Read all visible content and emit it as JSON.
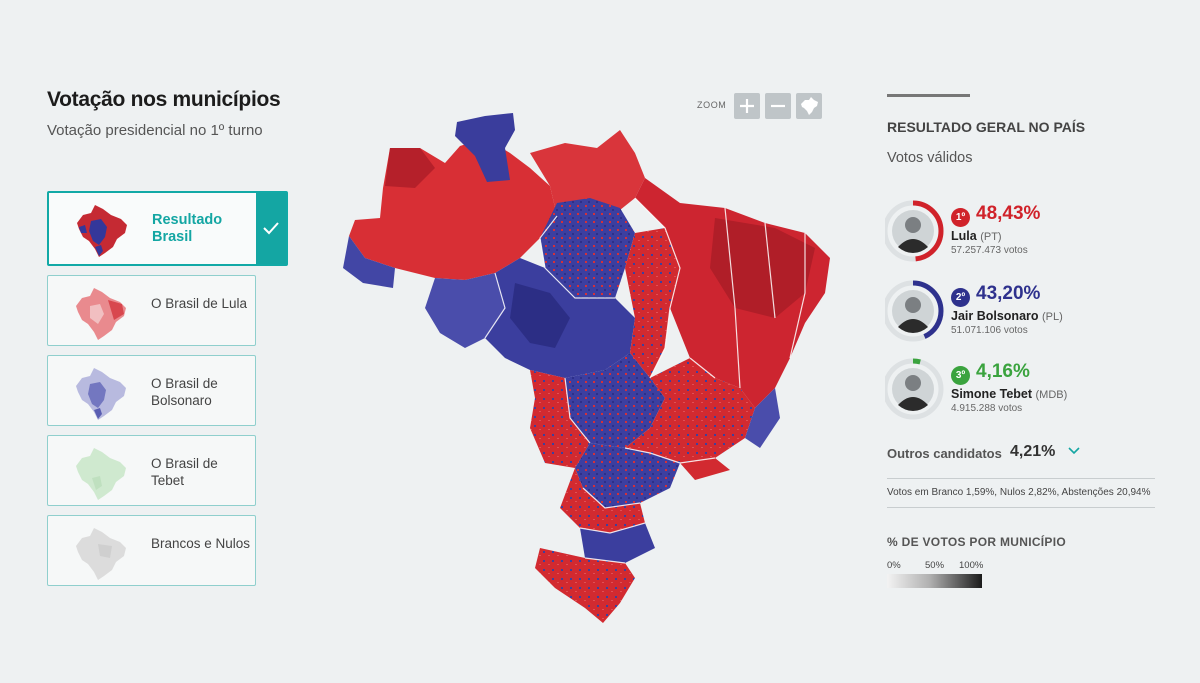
{
  "header": {
    "title": "Votação nos municípios",
    "subtitle": "Votação presidencial no 1º turno"
  },
  "options": [
    {
      "label": "Resultado Brasil",
      "selected": true
    },
    {
      "label": "O Brasil de Lula",
      "selected": false
    },
    {
      "label": "O Brasil de Bolsonaro",
      "selected": false
    },
    {
      "label": "O Brasil de Tebet",
      "selected": false
    },
    {
      "label": "Brancos e Nulos",
      "selected": false
    }
  ],
  "zoom": {
    "label": "ZOOM",
    "in_icon": "plus-icon",
    "out_icon": "minus-icon",
    "reset_icon": "brazil-map-icon"
  },
  "results": {
    "title": "RESULTADO GERAL NO PAÍS",
    "subtitle": "Votos válidos",
    "candidates": [
      {
        "rank": "1º",
        "pct": "48,43%",
        "share": 0.4843,
        "name": "Lula",
        "party": "(PT)",
        "votes": "57.257.473 votos",
        "color": "#d0222a"
      },
      {
        "rank": "2º",
        "pct": "43,20%",
        "share": 0.432,
        "name": "Jair Bolsonaro",
        "party": "(PL)",
        "votes": "51.071.106 votos",
        "color": "#2e318d"
      },
      {
        "rank": "3º",
        "pct": "4,16%",
        "share": 0.0416,
        "name": "Simone Tebet",
        "party": "(MDB)",
        "votes": "4.915.288 votos",
        "color": "#3aa33e"
      }
    ],
    "others_label": "Outros candidatos",
    "others_pct": "4,21%",
    "brancos": "Votos em Branco 1,59%, Nulos 2,82%, Abstenções 20,94%"
  },
  "legend": {
    "title": "% DE VOTOS POR MUNICÍPIO",
    "ticks": [
      "0%",
      "50%",
      "100%"
    ]
  },
  "colors": {
    "lula": "#d0222a",
    "bolsonaro": "#2e318d",
    "tebet": "#3aa33e",
    "accent": "#14a6a3"
  }
}
